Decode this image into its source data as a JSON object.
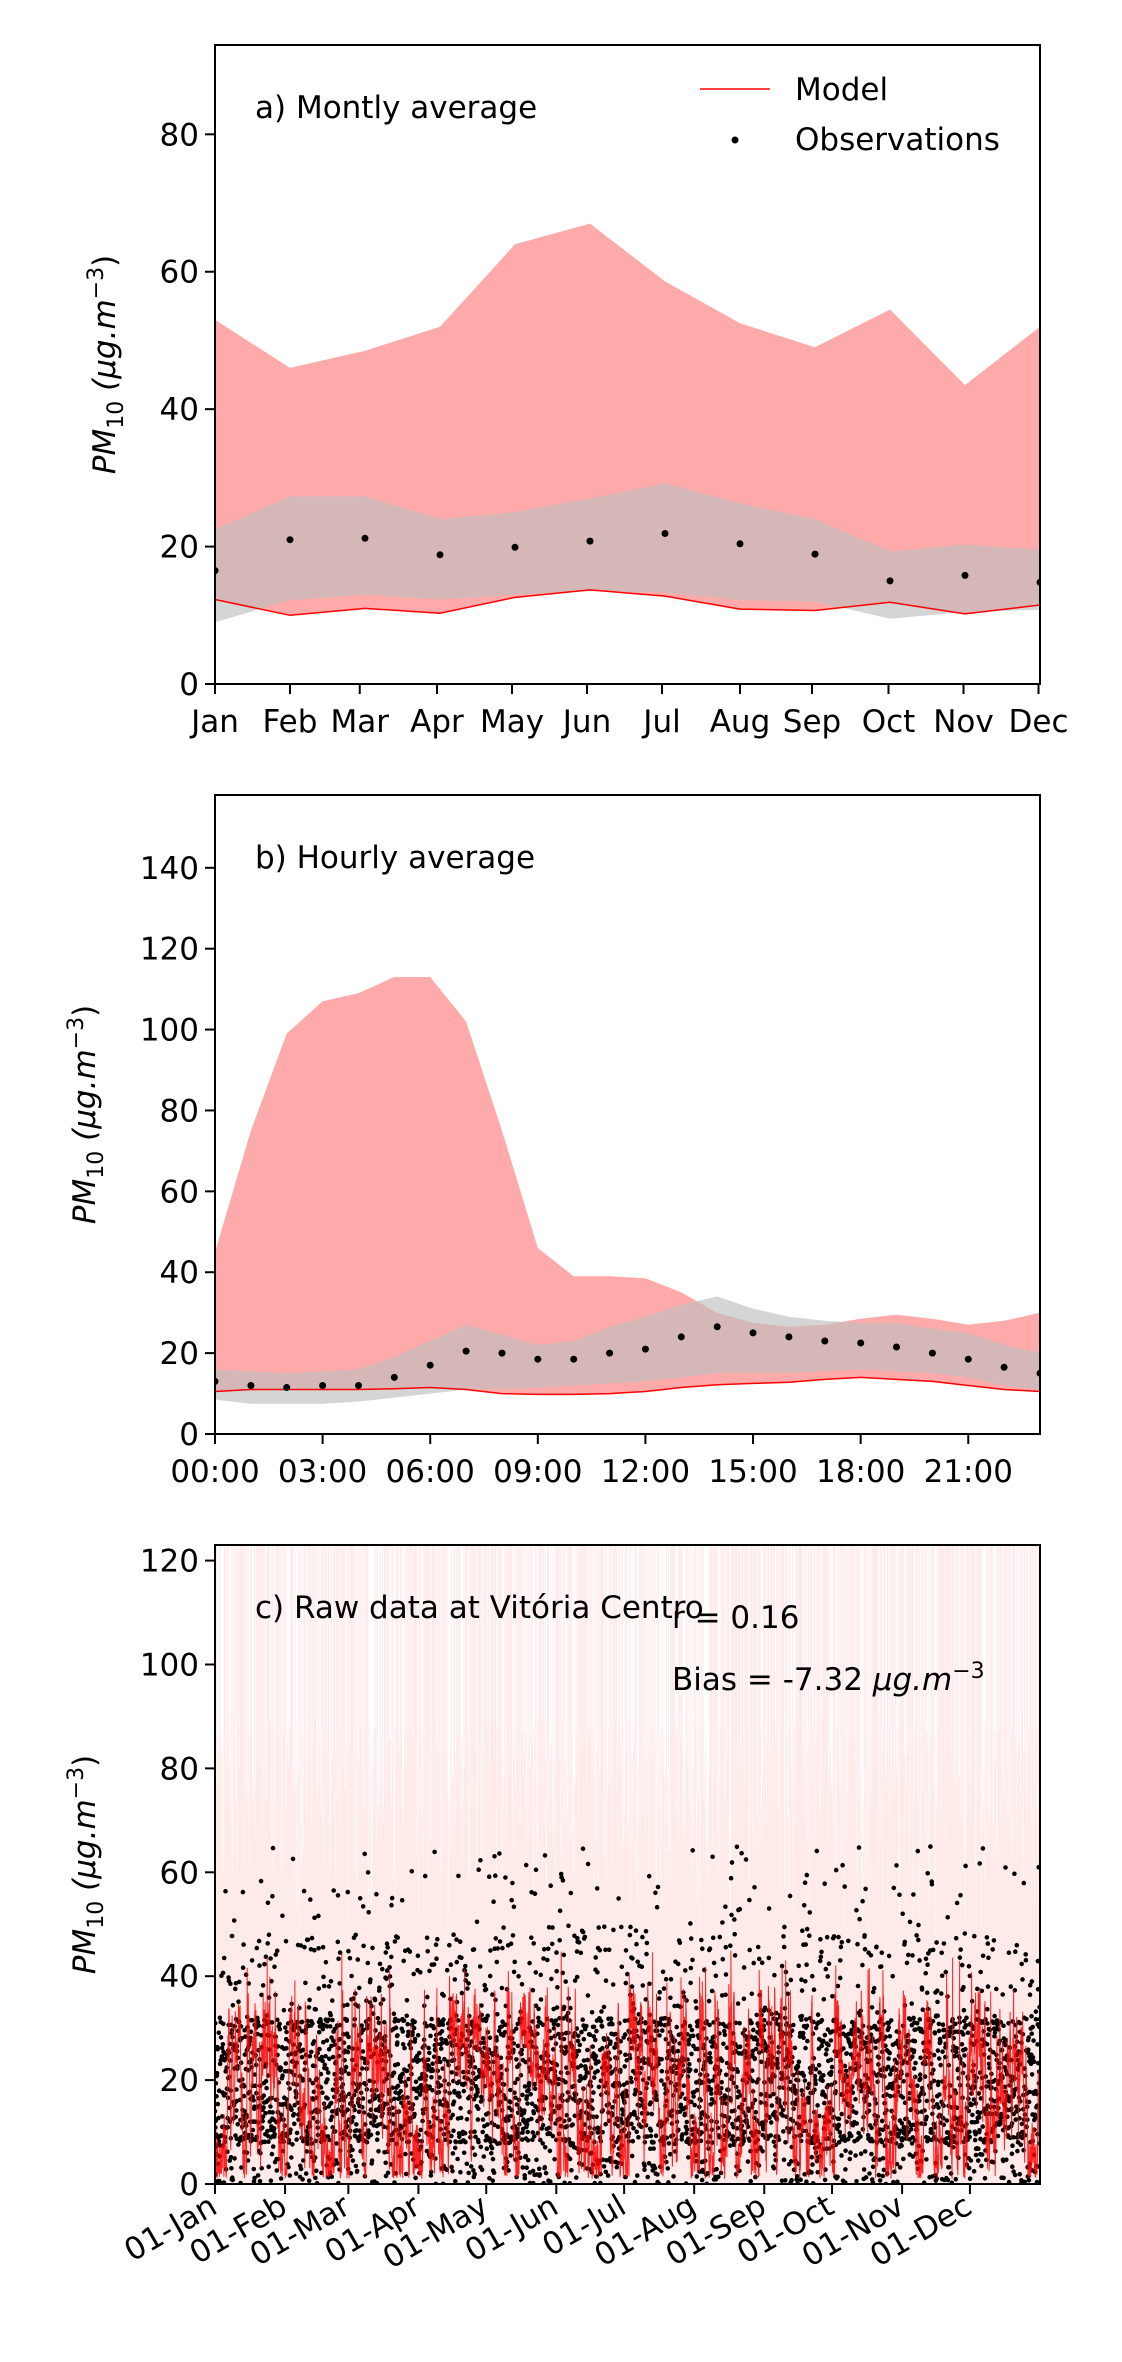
{
  "colors": {
    "model": "#ff0000",
    "model_band": "#ffaaaa",
    "obs_band": "#bfbfbf",
    "obs": "#000000",
    "raw_band": "#ffd5d5"
  },
  "legend": {
    "model": "Model",
    "observations": "Observations"
  },
  "chart_data": [
    {
      "type": "line",
      "title": "a) Montly average",
      "ylabel": "PM10 (μg.m^-3)",
      "ylabel_parts": {
        "base": "PM",
        "sub": "10",
        "rest": " (μg.m",
        "sup": "−3",
        "close": ")"
      },
      "ylim": [
        0,
        93
      ],
      "yticks": [
        0,
        20,
        40,
        60,
        80
      ],
      "yticklabels": [
        "0",
        "20",
        "40",
        "60",
        "80"
      ],
      "categories": [
        "Jan",
        "Feb",
        "Mar",
        "Apr",
        "May",
        "Jun",
        "Jul",
        "Aug",
        "Sep",
        "Oct",
        "Nov",
        "Dec"
      ],
      "x": [
        1,
        2,
        3,
        4,
        5,
        6,
        7,
        8,
        9,
        10,
        11,
        12
      ],
      "xtick_pos": [
        1,
        2,
        2.93,
        3.96,
        4.96,
        5.96,
        6.96,
        8,
        8.96,
        9.98,
        10.98,
        11.98
      ],
      "xlim": [
        1,
        12
      ],
      "legend_position": "top-right",
      "series": [
        {
          "name": "Model",
          "kind": "line",
          "values": [
            12.3,
            10,
            11,
            10.3,
            12.6,
            13.7,
            12.8,
            10.9,
            10.7,
            11.9,
            10.2,
            11.5
          ]
        },
        {
          "name": "Observations",
          "kind": "points",
          "values": [
            16.5,
            21,
            21.2,
            18.8,
            19.9,
            20.8,
            21.9,
            20.4,
            18.9,
            15,
            15.8,
            14.8
          ]
        },
        {
          "kind": "band",
          "lower": [
            12.3,
            10,
            11,
            10.3,
            12.6,
            13.7,
            12.8,
            10.9,
            10.7,
            11.9,
            10.2,
            11.5
          ],
          "upper": [
            53,
            46,
            48.5,
            52,
            64,
            67,
            58.6,
            52.5,
            49,
            54.5,
            43.5,
            52
          ]
        },
        {
          "kind": "band",
          "lower": [
            9,
            12.2,
            13,
            12.3,
            13,
            13.5,
            13.3,
            12.2,
            12,
            9.5,
            10.5,
            10.8
          ],
          "upper": [
            22.5,
            27.3,
            27.3,
            24,
            25,
            27,
            29.2,
            26.3,
            24,
            19.3,
            20.3,
            19.5
          ]
        }
      ]
    },
    {
      "type": "line",
      "title": "b) Hourly average",
      "ylabel": "PM10 (μg.m^-3)",
      "ylabel_parts": {
        "base": "PM",
        "sub": "10",
        "rest": " (μg.m",
        "sup": "−3",
        "close": ")"
      },
      "ylim": [
        0,
        158
      ],
      "yticks": [
        0,
        20,
        40,
        60,
        80,
        100,
        120,
        140
      ],
      "yticklabels": [
        "0",
        "20",
        "40",
        "60",
        "80",
        "100",
        "120",
        "140"
      ],
      "categories": [
        "00:00",
        "03:00",
        "06:00",
        "09:00",
        "12:00",
        "15:00",
        "18:00",
        "21:00"
      ],
      "x": [
        0,
        1,
        2,
        3,
        4,
        5,
        6,
        7,
        8,
        9,
        10,
        11,
        12,
        13,
        14,
        15,
        16,
        17,
        18,
        19,
        20,
        21,
        22,
        23
      ],
      "xtick_pos": [
        0,
        3,
        6,
        9,
        12,
        15,
        18,
        21
      ],
      "xlim": [
        0,
        23
      ],
      "series": [
        {
          "name": "Model",
          "kind": "line",
          "values": [
            10.5,
            11,
            11,
            11,
            11,
            11.2,
            11.5,
            11,
            10,
            9.8,
            9.8,
            10,
            10.5,
            11.5,
            12.2,
            12.5,
            12.8,
            13.5,
            14,
            13.5,
            13,
            12,
            11,
            10.5
          ]
        },
        {
          "name": "Observations",
          "kind": "points",
          "values": [
            13,
            12,
            11.5,
            12,
            12,
            14,
            17,
            20.5,
            20,
            18.5,
            18.5,
            20,
            21,
            24,
            26.5,
            25,
            24,
            23,
            22.5,
            21.5,
            20,
            18.5,
            16.5,
            15
          ]
        },
        {
          "kind": "band",
          "lower": [
            10.5,
            11,
            11,
            11,
            11,
            11.2,
            11.5,
            11,
            10,
            9.8,
            9.8,
            10,
            10.5,
            11.5,
            12.2,
            12.5,
            12.8,
            13.5,
            14,
            13.5,
            13,
            12,
            11,
            10.5
          ],
          "upper": [
            45,
            75,
            99,
            107,
            109,
            113,
            113,
            102,
            75,
            46,
            39,
            39,
            38.5,
            35,
            30,
            27.5,
            26.5,
            27,
            28.5,
            29.5,
            28.5,
            27,
            28,
            30
          ]
        },
        {
          "kind": "band",
          "lower": [
            8.5,
            7.5,
            7.5,
            7.5,
            8,
            9,
            10,
            11,
            11,
            11.5,
            12,
            12.5,
            13,
            14,
            15,
            15,
            15,
            15.5,
            16,
            15.5,
            15,
            14,
            12,
            11
          ],
          "upper": [
            16,
            15.5,
            15,
            15.5,
            16,
            19,
            23,
            27,
            24.5,
            22,
            23,
            26.5,
            29,
            32,
            34,
            31,
            29,
            28,
            27.5,
            27.5,
            26,
            25,
            22,
            20
          ]
        }
      ]
    },
    {
      "type": "line",
      "title": "c) Raw data at Vitória Centro",
      "ylabel": "PM10 (μg.m^-3)",
      "ylabel_parts": {
        "base": "PM",
        "sub": "10",
        "rest": " (μg.m",
        "sup": "−3",
        "close": ")"
      },
      "ylim": [
        0,
        123
      ],
      "yticks": [
        0,
        20,
        40,
        60,
        80,
        100,
        120
      ],
      "yticklabels": [
        "0",
        "20",
        "40",
        "60",
        "80",
        "100",
        "120"
      ],
      "categories": [
        "01-Jan",
        "01-Feb",
        "01-Mar",
        "01-Apr",
        "01-May",
        "01-Jun",
        "01-Jul",
        "01-Aug",
        "01-Sep",
        "01-Oct",
        "01-Nov",
        "01-Dec"
      ],
      "xtick_pos": [
        0,
        31,
        59,
        90,
        120,
        151,
        181,
        212,
        243,
        273,
        304,
        334
      ],
      "xlim": [
        0,
        365
      ],
      "stats": {
        "r": "r = 0.16",
        "bias": "Bias = -7.32 μg.m^-3",
        "bias_parts": {
          "prefix": "Bias = -7.32 ",
          "unit": "μg.m",
          "sup": "−3"
        }
      },
      "series": [
        {
          "name": "Model",
          "kind": "line",
          "description": "hourly model values, mostly 2–40"
        },
        {
          "name": "Observations",
          "kind": "points",
          "description": "hourly observations, mostly 0–45, peaks near 65"
        }
      ]
    }
  ]
}
